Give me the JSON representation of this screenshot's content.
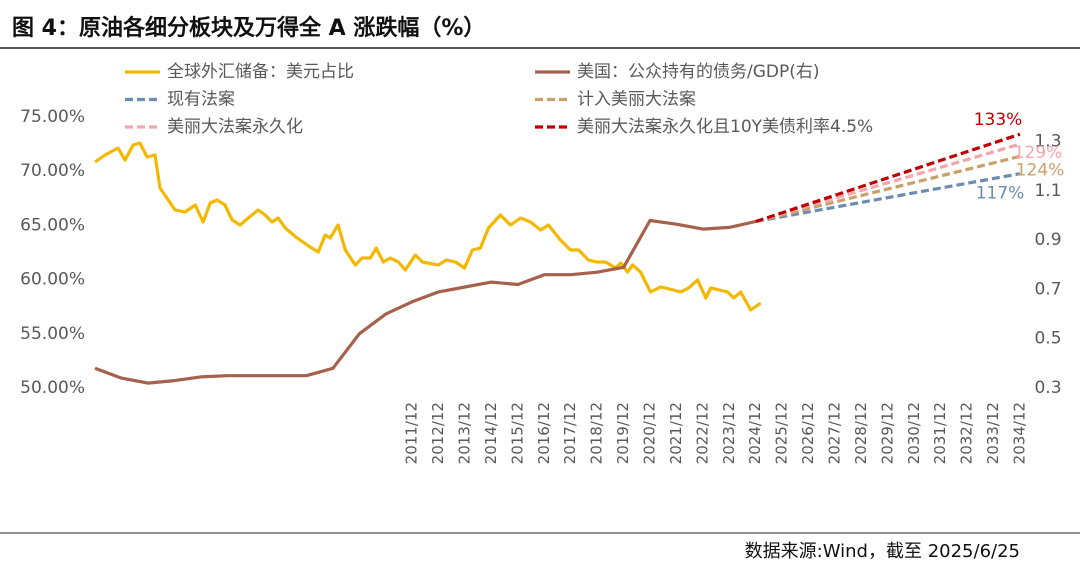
{
  "chart_data": {
    "type": "line",
    "title": "图 4：原油各细分板块及万得全 A 涨跌幅（%）",
    "source": "数据来源:Wind，截至 2025/6/25",
    "xlim": [
      2000,
      2035
    ],
    "xticks": [
      {
        "value": 2012,
        "label": "2011/12"
      },
      {
        "value": 2013,
        "label": "2012/12"
      },
      {
        "value": 2014,
        "label": "2013/12"
      },
      {
        "value": 2015,
        "label": "2014/12"
      },
      {
        "value": 2016,
        "label": "2015/12"
      },
      {
        "value": 2017,
        "label": "2016/12"
      },
      {
        "value": 2018,
        "label": "2017/12"
      },
      {
        "value": 2019,
        "label": "2018/12"
      },
      {
        "value": 2020,
        "label": "2019/12"
      },
      {
        "value": 2021,
        "label": "2020/12"
      },
      {
        "value": 2022,
        "label": "2021/12"
      },
      {
        "value": 2023,
        "label": "2022/12"
      },
      {
        "value": 2024,
        "label": "2023/12"
      },
      {
        "value": 2025,
        "label": "2024/12"
      },
      {
        "value": 2026,
        "label": "2025/12"
      },
      {
        "value": 2027,
        "label": "2026/12"
      },
      {
        "value": 2028,
        "label": "2027/12"
      },
      {
        "value": 2029,
        "label": "2028/12"
      },
      {
        "value": 2030,
        "label": "2029/12"
      },
      {
        "value": 2031,
        "label": "2030/12"
      },
      {
        "value": 2032,
        "label": "2031/12"
      },
      {
        "value": 2033,
        "label": "2032/12"
      },
      {
        "value": 2034,
        "label": "2033/12"
      },
      {
        "value": 2035,
        "label": "2034/12"
      }
    ],
    "ylim": [
      50,
      75
    ],
    "yticks": [
      {
        "value": 50,
        "label": "50.00%"
      },
      {
        "value": 55,
        "label": "55.00%"
      },
      {
        "value": 60,
        "label": "60.00%"
      },
      {
        "value": 65,
        "label": "65.00%"
      },
      {
        "value": 70,
        "label": "70.00%"
      },
      {
        "value": 75,
        "label": "75.00%"
      }
    ],
    "y2lim": [
      0.3,
      1.4
    ],
    "y2ticks": [
      0.3,
      0.5,
      0.7,
      0.9,
      1.1,
      1.3
    ],
    "grid": false,
    "series": [
      {
        "name": "全球外汇储备：美元占比",
        "color": "#f5b800",
        "style": "solid",
        "x": [
          2000.0,
          2000.38,
          2000.87,
          2001.14,
          2001.44,
          2001.7,
          2001.97,
          2002.27,
          2002.46,
          2003.03,
          2003.41,
          2003.79,
          2004.09,
          2004.36,
          2004.62,
          2004.92,
          2005.19,
          2005.49,
          2005.8,
          2006.17,
          2006.44,
          2006.7,
          2006.93,
          2007.2,
          2007.65,
          2008.14,
          2008.45,
          2008.71,
          2008.9,
          2009.2,
          2009.47,
          2009.85,
          2010.11,
          2010.42,
          2010.64,
          2010.91,
          2011.17,
          2011.48,
          2011.74,
          2012.12,
          2012.39,
          2012.99,
          2013.3,
          2013.64,
          2013.98,
          2014.28,
          2014.58,
          2014.89,
          2015.34,
          2015.72,
          2016.1,
          2016.48,
          2016.86,
          2017.16,
          2017.61,
          2017.99,
          2018.3,
          2018.67,
          2018.98,
          2019.32,
          2019.7,
          2019.89,
          2020.15,
          2020.34,
          2020.64,
          2021.02,
          2021.4,
          2021.89,
          2022.16,
          2022.46,
          2022.8,
          2023.11,
          2023.3,
          2023.94,
          2024.17,
          2024.43,
          2024.81,
          2025.19
        ],
        "values": [
          70.85,
          71.49,
          72.14,
          71.03,
          72.42,
          72.6,
          71.31,
          71.49,
          68.45,
          66.42,
          66.24,
          66.88,
          65.31,
          67.07,
          67.34,
          66.88,
          65.5,
          65.04,
          65.68,
          66.42,
          65.96,
          65.31,
          65.68,
          64.76,
          63.84,
          63.01,
          62.55,
          64.11,
          63.84,
          65.04,
          62.73,
          61.35,
          61.99,
          61.99,
          62.91,
          61.62,
          61.99,
          61.62,
          60.89,
          62.27,
          61.62,
          61.35,
          61.81,
          61.62,
          61.07,
          62.73,
          62.91,
          64.76,
          65.96,
          65.04,
          65.68,
          65.31,
          64.58,
          65.04,
          63.65,
          62.73,
          62.73,
          61.81,
          61.62,
          61.62,
          61.07,
          61.53,
          60.7,
          61.35,
          60.7,
          58.86,
          59.32,
          59.04,
          58.86,
          59.23,
          59.96,
          58.3,
          59.23,
          58.86,
          58.3,
          58.86,
          57.2,
          57.84
        ]
      },
      {
        "name": "美国：公众持有的债务/GDP(右)",
        "color": "#a5614b",
        "style": "solid",
        "axis": "y2",
        "x": [
          2000,
          2001,
          2002,
          2003,
          2004,
          2005,
          2006,
          2007,
          2008,
          2009,
          2010,
          2011,
          2012,
          2013,
          2014,
          2015,
          2016,
          2017,
          2018,
          2019,
          2020,
          2021,
          2022,
          2023,
          2024,
          2025
        ],
        "values": [
          0.38,
          0.34,
          0.32,
          0.33,
          0.345,
          0.35,
          0.35,
          0.35,
          0.35,
          0.38,
          0.52,
          0.6,
          0.65,
          0.69,
          0.71,
          0.73,
          0.72,
          0.76,
          0.76,
          0.77,
          0.79,
          0.98,
          0.965,
          0.945,
          0.952,
          0.976
        ]
      },
      {
        "name": "现有法案",
        "color": "#6b8db3",
        "style": "dashed",
        "axis": "y2",
        "x": [
          2025,
          2035
        ],
        "values": [
          0.976,
          1.17
        ],
        "value_labels": [
          null,
          "117%"
        ]
      },
      {
        "name": "计入美丽大法案",
        "color": "#c9a06a",
        "style": "dashed",
        "axis": "y2",
        "x": [
          2025,
          2035
        ],
        "values": [
          0.976,
          1.24
        ],
        "value_labels": [
          null,
          "124%"
        ]
      },
      {
        "name": "美丽大法案永久化",
        "color": "#f4a7ab",
        "style": "dashed",
        "axis": "y2",
        "x": [
          2025,
          2035
        ],
        "values": [
          0.976,
          1.29
        ],
        "value_labels": [
          null,
          "129%"
        ]
      },
      {
        "name": "美丽大法案永久化且10Y美债利率4.5%",
        "color": "#c00000",
        "style": "dashed",
        "axis": "y2",
        "x": [
          2025,
          2035
        ],
        "values": [
          0.976,
          1.33
        ],
        "value_labels": [
          null,
          "133%"
        ]
      }
    ]
  }
}
